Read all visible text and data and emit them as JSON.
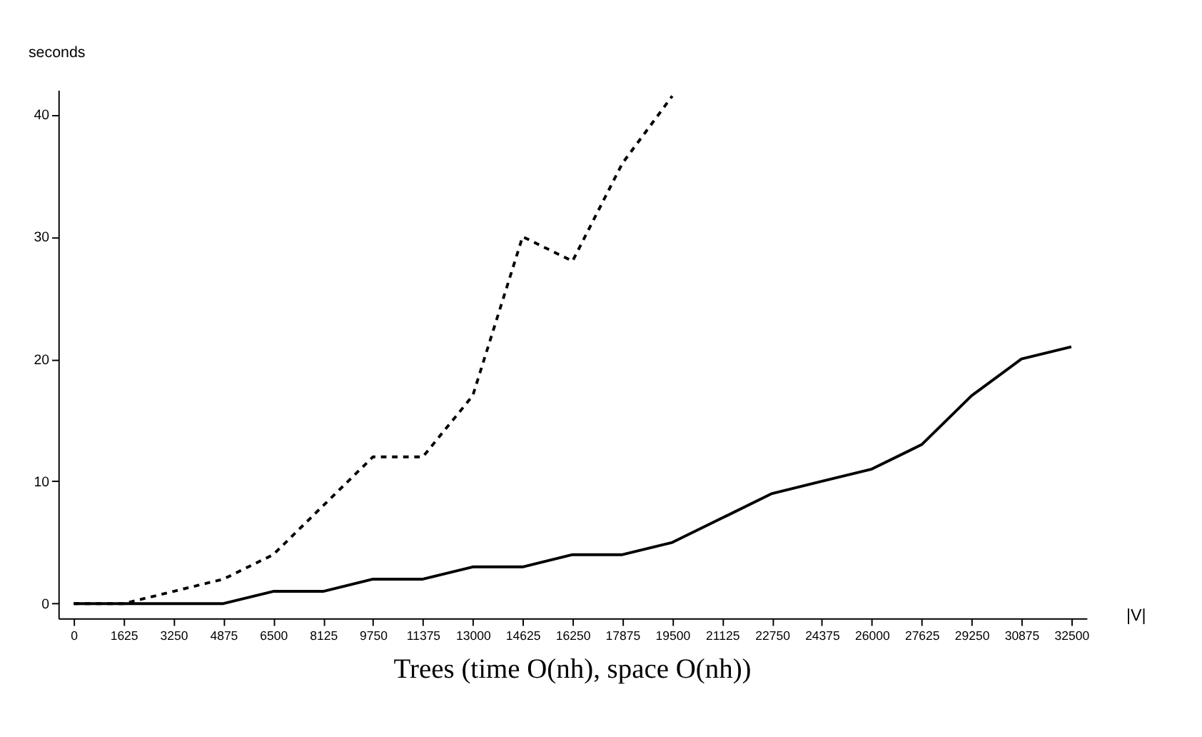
{
  "chart_data": {
    "type": "line",
    "title": "Trees (time O(nh), space O(nh))",
    "xlabel": "|V|",
    "ylabel": "seconds",
    "series": [
      {
        "color": "#000000",
        "line_style": "dashed",
        "x": [
          0,
          1625,
          3250,
          4875,
          6500,
          8125,
          9750,
          11375,
          13000,
          14625,
          16250,
          17875,
          19500
        ],
        "values": [
          0,
          0,
          1,
          2,
          4,
          8,
          12,
          12,
          17,
          30,
          28,
          36,
          41.5
        ]
      },
      {
        "color": "#000000",
        "line_style": "solid",
        "x": [
          0,
          1625,
          3250,
          4875,
          6500,
          8125,
          9750,
          11375,
          13000,
          14625,
          16250,
          17875,
          19500,
          21125,
          22750,
          24375,
          26000,
          27625,
          29250,
          30875,
          32500
        ],
        "values": [
          0,
          0,
          0,
          0,
          1,
          1,
          2,
          2,
          3,
          3,
          4,
          4,
          5,
          7,
          9,
          10,
          11,
          13,
          17,
          20,
          21
        ]
      }
    ],
    "xlim": [
      -500,
      33000
    ],
    "xticks": [
      0,
      1625,
      3250,
      4875,
      6500,
      8125,
      9750,
      11375,
      13000,
      14625,
      16250,
      17875,
      19500,
      21125,
      22750,
      24375,
      26000,
      27625,
      29250,
      30875,
      32500
    ],
    "ylim": [
      -1.2,
      42
    ],
    "yticks": [
      0,
      10,
      20,
      30,
      40
    ],
    "grid": false,
    "legend": false,
    "marker": "none"
  }
}
